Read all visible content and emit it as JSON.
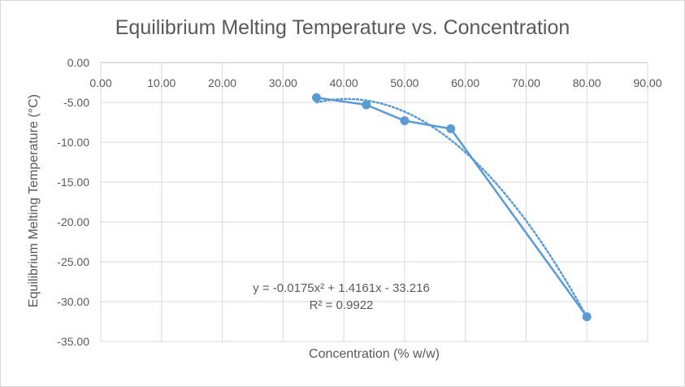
{
  "chart_data": {
    "type": "scatter",
    "title": "Equilibrium Melting Temperature  vs. Concentration",
    "xlabel": "Concentration (% w/w)",
    "ylabel": "Equilibrium Melting Temperature (°C)",
    "xlim": [
      0,
      90
    ],
    "ylim": [
      -35,
      0
    ],
    "x_ticks": [
      0,
      10,
      20,
      30,
      40,
      50,
      60,
      70,
      80,
      90
    ],
    "y_ticks": [
      0,
      -5,
      -10,
      -15,
      -20,
      -25,
      -30,
      -35
    ],
    "x_tick_labels": [
      "0.00",
      "10.00",
      "20.00",
      "30.00",
      "40.00",
      "50.00",
      "60.00",
      "70.00",
      "80.00",
      "90.00"
    ],
    "y_tick_labels": [
      "0.00",
      "-5.00",
      "-10.00",
      "-15.00",
      "-20.00",
      "-25.00",
      "-30.00",
      "-35.00"
    ],
    "x_axis_position": "top",
    "grid": true,
    "series": [
      {
        "x": [
          35.5,
          43.7,
          50.0,
          57.6,
          80.0
        ],
        "y": [
          -4.4,
          -5.3,
          -7.3,
          -8.3,
          -31.9
        ],
        "color": "#5b9bd5",
        "connected": true,
        "markers": true
      }
    ],
    "trendline": {
      "type": "polynomial",
      "coefficients": [
        -0.0175,
        1.4161,
        -33.216
      ],
      "x_range": [
        35.5,
        80.0
      ],
      "style": "dotted",
      "color": "#5b9bd5",
      "equation": "y = -0.0175x² + 1.4161x - 33.216",
      "r_squared": "R² = 0.9922"
    }
  }
}
